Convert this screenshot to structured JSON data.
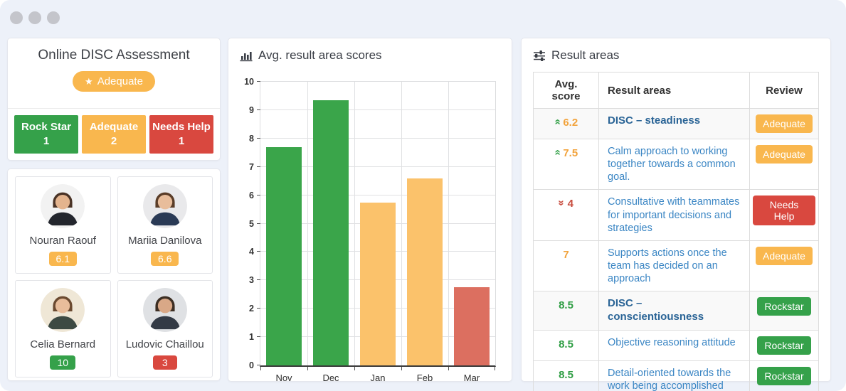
{
  "palette": {
    "green": "#35a14a",
    "orange": "#f9b74e",
    "red": "#d9483f",
    "bar_green": "#3aa54a",
    "bar_orange": "#fbc26b",
    "bar_red": "#dc6f60",
    "score_orange": "#f2a33c",
    "score_red": "#c74a3c",
    "score_green": "#2f9e44",
    "link_blue": "#3b86c4",
    "bold_blue": "#2a6496"
  },
  "assessment_panel": {
    "title": "Online DISC Assessment",
    "overall_badge": {
      "label": "Adequate",
      "icon": "star",
      "color": "orange"
    },
    "stats": [
      {
        "label": "Rock Star",
        "count": "1",
        "color": "green"
      },
      {
        "label": "Adequate",
        "count": "2",
        "color": "orange"
      },
      {
        "label": "Needs Help",
        "count": "1",
        "color": "red"
      }
    ],
    "people": [
      {
        "name": "Nouran Raouf",
        "score": "6.1",
        "score_color": "orange",
        "avatar": {
          "bg": "#f2f2f2",
          "skin": "#e4b48e",
          "hair": "#4a3326",
          "suit": "#23262d"
        }
      },
      {
        "name": "Mariia Danilova",
        "score": "6.6",
        "score_color": "orange",
        "avatar": {
          "bg": "#e9e9eb",
          "skin": "#e8bd9b",
          "hair": "#5a3d28",
          "suit": "#2a3a55"
        }
      },
      {
        "name": "Celia Bernard",
        "score": "10",
        "score_color": "green",
        "avatar": {
          "bg": "#efe7d6",
          "skin": "#e8bd9b",
          "hair": "#6b4a30",
          "suit": "#3d4a43"
        }
      },
      {
        "name": "Ludovic Chaillou",
        "score": "3",
        "score_color": "red",
        "avatar": {
          "bg": "#dfe1e4",
          "skin": "#d9a887",
          "hair": "#3c2e23",
          "suit": "#333a45"
        }
      }
    ]
  },
  "chart_panel": {
    "title": "Avg. result area scores"
  },
  "chart_data": {
    "type": "bar",
    "title": "Avg. result area scores",
    "categories": [
      "Nov",
      "Dec",
      "Jan",
      "Feb",
      "Mar"
    ],
    "values": [
      7.7,
      9.35,
      5.75,
      6.6,
      2.75
    ],
    "bar_colors": [
      "bar_green",
      "bar_green",
      "bar_orange",
      "bar_orange",
      "bar_red"
    ],
    "xlabel": "",
    "ylabel": "",
    "ylim": [
      0,
      10
    ],
    "ytick_step": 1,
    "grid": true,
    "legend": false
  },
  "results_panel": {
    "title": "Result areas",
    "table": {
      "headers": [
        "Avg. score",
        "Result areas",
        "Review"
      ],
      "rows": [
        {
          "score": "6.2",
          "trend": "up",
          "score_color": "score_orange",
          "area": "DISC – steadiness",
          "bold": true,
          "shaded": true,
          "review": "Adequate",
          "review_color": "orange"
        },
        {
          "score": "7.5",
          "trend": "up",
          "score_color": "score_orange",
          "area": "Calm approach to working together towards a common goal.",
          "bold": false,
          "shaded": false,
          "review": "Adequate",
          "review_color": "orange"
        },
        {
          "score": "4",
          "trend": "down",
          "score_color": "score_red",
          "area": "Consultative with teammates for important decisions and strategies",
          "bold": false,
          "shaded": false,
          "review": "Needs Help",
          "review_color": "red"
        },
        {
          "score": "7",
          "trend": "none",
          "score_color": "score_orange",
          "area": "Supports actions once the team has decided on an approach",
          "bold": false,
          "shaded": false,
          "review": "Adequate",
          "review_color": "orange"
        },
        {
          "score": "8.5",
          "trend": "none",
          "score_color": "score_green",
          "area": "DISC – conscientiousness",
          "bold": true,
          "shaded": true,
          "review": "Rockstar",
          "review_color": "green"
        },
        {
          "score": "8.5",
          "trend": "none",
          "score_color": "score_green",
          "area": "Objective reasoning attitude",
          "bold": false,
          "shaded": false,
          "review": "Rockstar",
          "review_color": "green"
        },
        {
          "score": "8.5",
          "trend": "none",
          "score_color": "score_green",
          "area": "Detail-oriented towards the work being accomplished",
          "bold": false,
          "shaded": false,
          "review": "Rockstar",
          "review_color": "green"
        }
      ]
    }
  }
}
